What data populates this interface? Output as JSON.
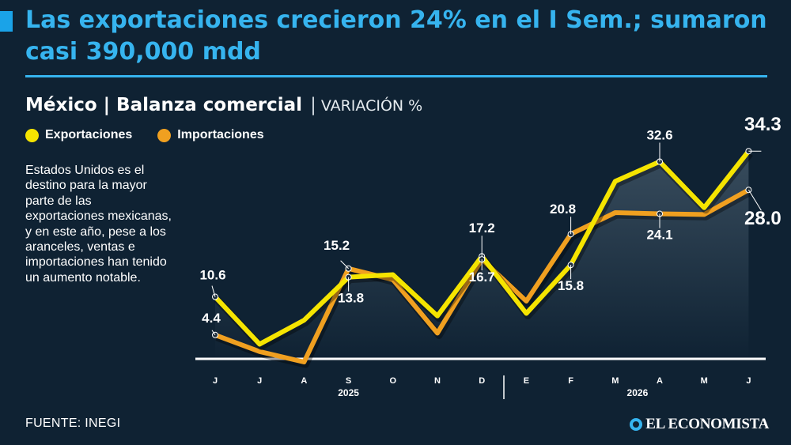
{
  "header": {
    "title": "Las exportaciones crecieron 24% en el I Sem.; sumaron casi 390,000 mdd",
    "subtitle": "México | Balanza comercial",
    "unit": "VARIACIÓN %"
  },
  "note": "Estados Unidos es el destino para la mayor parte de las exportaciones mexicanas, y en este año, pese a los aranceles, ventas e importaciones han tenido un aumento notable.",
  "footer": {
    "source": "FUENTE: INEGI",
    "brand": "EL ECONOMISTA"
  },
  "colors": {
    "exports": "#f5e400",
    "imports": "#f0a020",
    "accent": "#36b4ef",
    "background": "#0f2233"
  },
  "chart_data": {
    "type": "line",
    "unit": "VARIACIÓN %",
    "categories": [
      "J",
      "J",
      "A",
      "S",
      "O",
      "N",
      "D",
      "E",
      "F",
      "M",
      "A",
      "M",
      "J"
    ],
    "year_groups": [
      {
        "label": "2025",
        "from": 0,
        "to": 6
      },
      {
        "label": "2026",
        "from": 7,
        "to": 12
      }
    ],
    "series": [
      {
        "name": "Exportaciones",
        "color": "#f5e400",
        "values": [
          10.6,
          2.9,
          6.8,
          13.8,
          14.2,
          7.5,
          17.2,
          7.9,
          15.8,
          29.4,
          32.6,
          25.1,
          34.3
        ],
        "labels": [
          {
            "index": 0,
            "text": "10.6"
          },
          {
            "index": 3,
            "text": "13.8"
          },
          {
            "index": 6,
            "text": "17.2"
          },
          {
            "index": 8,
            "text": "15.8"
          },
          {
            "index": 10,
            "text": "32.6"
          },
          {
            "index": 12,
            "text": "34.3"
          }
        ]
      },
      {
        "name": "Importaciones",
        "color": "#f0a020",
        "values": [
          4.4,
          1.7,
          0.0,
          15.2,
          13.4,
          4.7,
          16.7,
          9.9,
          20.8,
          24.3,
          24.1,
          24.0,
          28.0
        ],
        "labels": [
          {
            "index": 0,
            "text": "4.4"
          },
          {
            "index": 3,
            "text": "15.2"
          },
          {
            "index": 6,
            "text": "16.7"
          },
          {
            "index": 8,
            "text": "20.8"
          },
          {
            "index": 10,
            "text": "24.1"
          },
          {
            "index": 12,
            "text": "28.0"
          }
        ]
      }
    ],
    "ylim": [
      0,
      36
    ],
    "grid": false,
    "legend": "top-left"
  }
}
